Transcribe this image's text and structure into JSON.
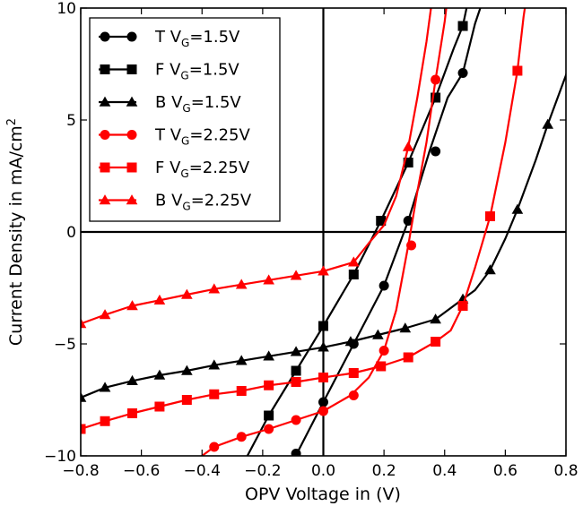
{
  "chart_data": {
    "type": "line",
    "title": "",
    "xlabel": "OPV Voltage in (V)",
    "ylabel": "Current Density in mA/cm²",
    "ylabel_main": "Current Density in mA/cm",
    "ylabel_sup": "2",
    "xlim": [
      -0.8,
      0.8
    ],
    "ylim": [
      -10,
      10
    ],
    "xticks": [
      -0.8,
      -0.6,
      -0.4,
      -0.2,
      0.0,
      0.2,
      0.4,
      0.6,
      0.8
    ],
    "xtick_labels": [
      "−0.8",
      "−0.6",
      "−0.4",
      "−0.2",
      "0.0",
      "0.2",
      "0.4",
      "0.6",
      "0.8"
    ],
    "yticks": [
      -10,
      -5,
      0,
      5,
      10
    ],
    "ytick_labels": [
      "−10",
      "−5",
      "0",
      "5",
      "10"
    ],
    "legend_position": "top-left",
    "colors": {
      "black": "#000000",
      "red": "#ff0000"
    },
    "series": [
      {
        "name": "T VG=1.5V",
        "label_prefix": "T V",
        "label_sub": "G",
        "label_suffix": "=1.5V",
        "color": "#000000",
        "marker": "circle",
        "curve": [
          [
            -0.11,
            -10.5
          ],
          [
            0.0,
            -7.6
          ],
          [
            0.1,
            -5.0
          ],
          [
            0.2,
            -2.4
          ],
          [
            0.28,
            0.5
          ],
          [
            0.35,
            3.6
          ],
          [
            0.41,
            6.0
          ],
          [
            0.46,
            7.1
          ],
          [
            0.5,
            9.3
          ],
          [
            0.53,
            10.5
          ]
        ],
        "markers": [
          [
            -0.09,
            -9.9
          ],
          [
            0.0,
            -7.6
          ],
          [
            0.1,
            -5.0
          ],
          [
            0.2,
            -2.4
          ],
          [
            0.28,
            0.5
          ],
          [
            0.37,
            3.6
          ],
          [
            0.46,
            7.1
          ]
        ]
      },
      {
        "name": "F VG=1.5V",
        "label_prefix": "F V",
        "label_sub": "G",
        "label_suffix": "=1.5V",
        "color": "#000000",
        "marker": "square",
        "curve": [
          [
            -0.27,
            -10.5
          ],
          [
            -0.18,
            -8.2
          ],
          [
            -0.09,
            -6.2
          ],
          [
            0.0,
            -4.2
          ],
          [
            0.1,
            -1.9
          ],
          [
            0.19,
            0.5
          ],
          [
            0.28,
            3.1
          ],
          [
            0.37,
            6.0
          ],
          [
            0.43,
            8.2
          ],
          [
            0.46,
            9.2
          ],
          [
            0.48,
            10.5
          ]
        ],
        "markers": [
          [
            -0.18,
            -8.2
          ],
          [
            -0.09,
            -6.2
          ],
          [
            0.0,
            -4.2
          ],
          [
            0.1,
            -1.9
          ],
          [
            0.19,
            0.5
          ],
          [
            0.28,
            3.1
          ],
          [
            0.37,
            6.0
          ],
          [
            0.46,
            9.2
          ]
        ]
      },
      {
        "name": "B VG=1.5V",
        "label_prefix": "B V",
        "label_sub": "G",
        "label_suffix": "=1.5V",
        "color": "#000000",
        "marker": "triangle",
        "curve": [
          [
            -0.8,
            -7.4
          ],
          [
            -0.72,
            -6.95
          ],
          [
            -0.63,
            -6.65
          ],
          [
            -0.54,
            -6.4
          ],
          [
            -0.45,
            -6.2
          ],
          [
            -0.36,
            -5.95
          ],
          [
            -0.27,
            -5.75
          ],
          [
            -0.18,
            -5.55
          ],
          [
            -0.09,
            -5.35
          ],
          [
            0.0,
            -5.15
          ],
          [
            0.09,
            -4.9
          ],
          [
            0.18,
            -4.6
          ],
          [
            0.27,
            -4.3
          ],
          [
            0.37,
            -3.9
          ],
          [
            0.46,
            -3.0
          ],
          [
            0.5,
            -2.6
          ],
          [
            0.55,
            -1.7
          ],
          [
            0.6,
            -0.3
          ],
          [
            0.64,
            1.0
          ],
          [
            0.7,
            3.2
          ],
          [
            0.74,
            4.8
          ],
          [
            0.8,
            7.0
          ],
          [
            0.83,
            8.6
          ]
        ],
        "markers": [
          [
            -0.8,
            -7.4
          ],
          [
            -0.72,
            -6.95
          ],
          [
            -0.63,
            -6.65
          ],
          [
            -0.54,
            -6.4
          ],
          [
            -0.45,
            -6.2
          ],
          [
            -0.36,
            -5.95
          ],
          [
            -0.27,
            -5.75
          ],
          [
            -0.18,
            -5.55
          ],
          [
            -0.09,
            -5.35
          ],
          [
            0.0,
            -5.15
          ],
          [
            0.09,
            -4.9
          ],
          [
            0.18,
            -4.6
          ],
          [
            0.27,
            -4.3
          ],
          [
            0.37,
            -3.9
          ],
          [
            0.46,
            -3.0
          ],
          [
            0.55,
            -1.7
          ],
          [
            0.64,
            1.0
          ],
          [
            0.74,
            4.8
          ]
        ]
      },
      {
        "name": "T VG=2.25V",
        "label_prefix": "T V",
        "label_sub": "G",
        "label_suffix": "=2.25V",
        "color": "#ff0000",
        "marker": "circle",
        "curve": [
          [
            -0.45,
            -10.5
          ],
          [
            -0.36,
            -9.6
          ],
          [
            -0.27,
            -9.15
          ],
          [
            -0.18,
            -8.8
          ],
          [
            -0.09,
            -8.4
          ],
          [
            0.0,
            -8.0
          ],
          [
            0.09,
            -7.3
          ],
          [
            0.15,
            -6.5
          ],
          [
            0.2,
            -5.3
          ],
          [
            0.24,
            -3.5
          ],
          [
            0.28,
            -0.6
          ],
          [
            0.31,
            1.8
          ],
          [
            0.34,
            4.0
          ],
          [
            0.37,
            6.8
          ],
          [
            0.4,
            9.4
          ],
          [
            0.41,
            10.5
          ]
        ],
        "markers": [
          [
            -0.36,
            -9.6
          ],
          [
            -0.27,
            -9.15
          ],
          [
            -0.18,
            -8.8
          ],
          [
            -0.09,
            -8.4
          ],
          [
            0.0,
            -8.0
          ],
          [
            0.1,
            -7.3
          ],
          [
            0.2,
            -5.3
          ],
          [
            0.29,
            -0.6
          ],
          [
            0.37,
            6.8
          ]
        ]
      },
      {
        "name": "F VG=2.25V",
        "label_prefix": "F V",
        "label_sub": "G",
        "label_suffix": "=2.25V",
        "color": "#ff0000",
        "marker": "square",
        "curve": [
          [
            -0.8,
            -8.8
          ],
          [
            -0.72,
            -8.45
          ],
          [
            -0.63,
            -8.1
          ],
          [
            -0.54,
            -7.8
          ],
          [
            -0.45,
            -7.5
          ],
          [
            -0.36,
            -7.25
          ],
          [
            -0.27,
            -7.1
          ],
          [
            -0.18,
            -6.85
          ],
          [
            -0.09,
            -6.7
          ],
          [
            0.0,
            -6.5
          ],
          [
            0.1,
            -6.3
          ],
          [
            0.19,
            -6.0
          ],
          [
            0.28,
            -5.6
          ],
          [
            0.37,
            -4.9
          ],
          [
            0.42,
            -4.4
          ],
          [
            0.46,
            -3.3
          ],
          [
            0.5,
            -1.6
          ],
          [
            0.55,
            0.7
          ],
          [
            0.6,
            4.0
          ],
          [
            0.64,
            7.2
          ],
          [
            0.66,
            9.6
          ],
          [
            0.67,
            10.5
          ]
        ],
        "markers": [
          [
            -0.8,
            -8.8
          ],
          [
            -0.72,
            -8.45
          ],
          [
            -0.63,
            -8.1
          ],
          [
            -0.54,
            -7.8
          ],
          [
            -0.45,
            -7.5
          ],
          [
            -0.36,
            -7.25
          ],
          [
            -0.27,
            -7.1
          ],
          [
            -0.18,
            -6.85
          ],
          [
            -0.09,
            -6.7
          ],
          [
            0.0,
            -6.5
          ],
          [
            0.1,
            -6.3
          ],
          [
            0.19,
            -6.0
          ],
          [
            0.28,
            -5.6
          ],
          [
            0.37,
            -4.9
          ],
          [
            0.46,
            -3.3
          ],
          [
            0.55,
            0.7
          ],
          [
            0.64,
            7.2
          ]
        ]
      },
      {
        "name": "B VG=2.25V",
        "label_prefix": "B V",
        "label_sub": "G",
        "label_suffix": "=2.25V",
        "color": "#ff0000",
        "marker": "triangle",
        "curve": [
          [
            -0.8,
            -4.1
          ],
          [
            -0.72,
            -3.7
          ],
          [
            -0.63,
            -3.3
          ],
          [
            -0.54,
            -3.05
          ],
          [
            -0.45,
            -2.8
          ],
          [
            -0.36,
            -2.55
          ],
          [
            -0.27,
            -2.35
          ],
          [
            -0.18,
            -2.15
          ],
          [
            -0.09,
            -1.95
          ],
          [
            0.0,
            -1.75
          ],
          [
            0.1,
            -1.35
          ],
          [
            0.15,
            -0.5
          ],
          [
            0.2,
            0.3
          ],
          [
            0.24,
            1.6
          ],
          [
            0.28,
            3.8
          ],
          [
            0.31,
            6.0
          ],
          [
            0.34,
            8.5
          ],
          [
            0.36,
            10.5
          ]
        ],
        "markers": [
          [
            -0.8,
            -4.1
          ],
          [
            -0.72,
            -3.7
          ],
          [
            -0.63,
            -3.3
          ],
          [
            -0.54,
            -3.05
          ],
          [
            -0.45,
            -2.8
          ],
          [
            -0.36,
            -2.55
          ],
          [
            -0.27,
            -2.35
          ],
          [
            -0.18,
            -2.15
          ],
          [
            -0.09,
            -1.95
          ],
          [
            0.0,
            -1.75
          ],
          [
            0.1,
            -1.35
          ],
          [
            0.28,
            3.8
          ]
        ]
      }
    ]
  }
}
